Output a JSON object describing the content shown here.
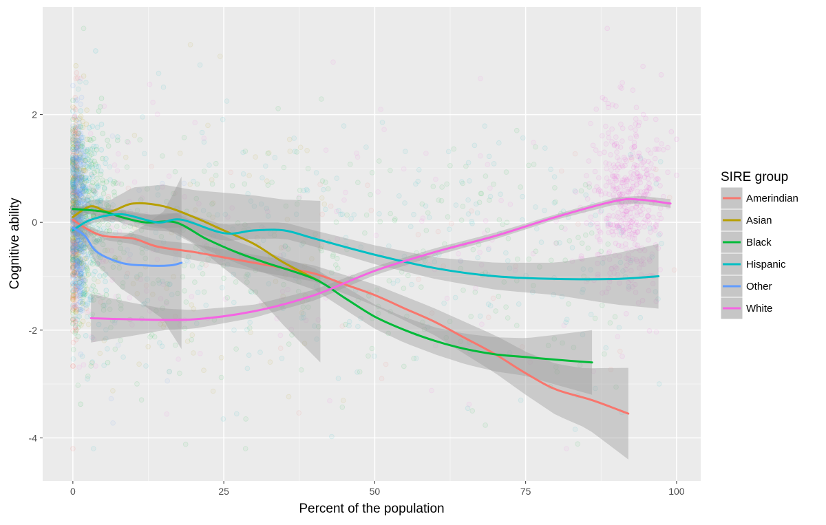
{
  "chart_data": {
    "type": "scatter",
    "title": "",
    "xlabel": "Percent of the population",
    "ylabel": "Cognitive ability",
    "xlim": [
      -5,
      104
    ],
    "ylim": [
      -4.8,
      4.0
    ],
    "x_ticks": [
      0,
      25,
      50,
      75,
      100
    ],
    "y_ticks": [
      -4,
      -2,
      0,
      2
    ],
    "x_tick_labels": [
      "0",
      "25",
      "50",
      "75",
      "100"
    ],
    "y_tick_labels": [
      "-4",
      "-2",
      "0",
      "2"
    ],
    "grid": true,
    "legend": {
      "title": "SIRE group",
      "position": "right"
    },
    "series": [
      {
        "name": "Amerindian",
        "color": "#F8766D",
        "x_range": [
          0,
          92
        ],
        "smooth": [
          [
            0,
            0.05
          ],
          [
            2,
            -0.1
          ],
          [
            5,
            -0.25
          ],
          [
            10,
            -0.3
          ],
          [
            14,
            -0.45
          ],
          [
            20,
            -0.55
          ],
          [
            25,
            -0.65
          ],
          [
            30,
            -0.75
          ],
          [
            35,
            -0.85
          ],
          [
            40,
            -0.95
          ],
          [
            45,
            -1.15
          ],
          [
            50,
            -1.35
          ],
          [
            55,
            -1.6
          ],
          [
            60,
            -1.85
          ],
          [
            65,
            -2.15
          ],
          [
            70,
            -2.45
          ],
          [
            75,
            -2.8
          ],
          [
            80,
            -3.1
          ],
          [
            86,
            -3.3
          ],
          [
            92,
            -3.55
          ]
        ],
        "ci_halfwidth": [
          [
            0,
            0.05
          ],
          [
            20,
            0.15
          ],
          [
            40,
            0.15
          ],
          [
            60,
            0.25
          ],
          [
            75,
            0.4
          ],
          [
            85,
            0.55
          ],
          [
            92,
            0.85
          ]
        ]
      },
      {
        "name": "Asian",
        "color": "#B79F00",
        "x_range": [
          0,
          41
        ],
        "smooth": [
          [
            0,
            0.1
          ],
          [
            3,
            0.3
          ],
          [
            6,
            0.2
          ],
          [
            10,
            0.35
          ],
          [
            15,
            0.3
          ],
          [
            20,
            0.1
          ],
          [
            25,
            -0.15
          ],
          [
            30,
            -0.4
          ],
          [
            35,
            -0.75
          ],
          [
            41,
            -1.1
          ]
        ],
        "ci_halfwidth": [
          [
            0,
            0.05
          ],
          [
            10,
            0.3
          ],
          [
            20,
            0.5
          ],
          [
            30,
            0.9
          ],
          [
            41,
            1.5
          ]
        ]
      },
      {
        "name": "Black",
        "color": "#00BA38",
        "x_range": [
          0,
          86
        ],
        "smooth": [
          [
            0,
            0.25
          ],
          [
            5,
            0.2
          ],
          [
            8,
            0.1
          ],
          [
            12,
            0
          ],
          [
            17,
            0
          ],
          [
            22,
            -0.3
          ],
          [
            27,
            -0.55
          ],
          [
            32,
            -0.75
          ],
          [
            40,
            -1.05
          ],
          [
            45,
            -1.4
          ],
          [
            50,
            -1.75
          ],
          [
            55,
            -2.0
          ],
          [
            60,
            -2.2
          ],
          [
            65,
            -2.35
          ],
          [
            70,
            -2.45
          ],
          [
            75,
            -2.5
          ],
          [
            80,
            -2.55
          ],
          [
            86,
            -2.6
          ]
        ],
        "ci_halfwidth": [
          [
            0,
            0.05
          ],
          [
            20,
            0.2
          ],
          [
            40,
            0.2
          ],
          [
            60,
            0.25
          ],
          [
            75,
            0.35
          ],
          [
            86,
            0.6
          ]
        ]
      },
      {
        "name": "Hispanic",
        "color": "#00BFC4",
        "x_range": [
          0,
          97
        ],
        "smooth": [
          [
            0,
            -0.15
          ],
          [
            3,
            0.05
          ],
          [
            8,
            0.15
          ],
          [
            14,
            0
          ],
          [
            18,
            0.05
          ],
          [
            25,
            -0.2
          ],
          [
            30,
            -0.15
          ],
          [
            35,
            -0.15
          ],
          [
            40,
            -0.3
          ],
          [
            50,
            -0.6
          ],
          [
            60,
            -0.85
          ],
          [
            70,
            -1.0
          ],
          [
            80,
            -1.05
          ],
          [
            90,
            -1.05
          ],
          [
            97,
            -1.0
          ]
        ],
        "ci_halfwidth": [
          [
            0,
            0.05
          ],
          [
            20,
            0.15
          ],
          [
            40,
            0.15
          ],
          [
            60,
            0.2
          ],
          [
            80,
            0.3
          ],
          [
            97,
            0.6
          ]
        ]
      },
      {
        "name": "Other",
        "color": "#619CFF",
        "x_range": [
          0,
          18
        ],
        "smooth": [
          [
            0,
            -0.1
          ],
          [
            2,
            -0.25
          ],
          [
            4,
            -0.55
          ],
          [
            8,
            -0.75
          ],
          [
            12,
            -0.8
          ],
          [
            16,
            -0.8
          ],
          [
            18,
            -0.75
          ]
        ],
        "ci_halfwidth": [
          [
            0,
            0.05
          ],
          [
            5,
            0.3
          ],
          [
            10,
            0.6
          ],
          [
            15,
            1.0
          ],
          [
            18,
            1.6
          ]
        ]
      },
      {
        "name": "White",
        "color": "#F564E3",
        "x_range": [
          3,
          99
        ],
        "smooth": [
          [
            3,
            -1.78
          ],
          [
            10,
            -1.8
          ],
          [
            20,
            -1.8
          ],
          [
            30,
            -1.65
          ],
          [
            40,
            -1.35
          ],
          [
            50,
            -0.9
          ],
          [
            60,
            -0.55
          ],
          [
            70,
            -0.25
          ],
          [
            80,
            0.1
          ],
          [
            90,
            0.4
          ],
          [
            94,
            0.42
          ],
          [
            99,
            0.35
          ]
        ],
        "ci_halfwidth": [
          [
            3,
            0.45
          ],
          [
            15,
            0.2
          ],
          [
            30,
            0.12
          ],
          [
            50,
            0.08
          ],
          [
            80,
            0.05
          ],
          [
            99,
            0.08
          ]
        ]
      }
    ],
    "scatter_clouds": [
      {
        "series": "Amerindian",
        "count": 320,
        "x_center": 0.3,
        "x_spread": 0.6,
        "y_mean": 0.0,
        "y_sd": 1.15,
        "tail_count": 50,
        "tail_x_max": 100
      },
      {
        "series": "Asian",
        "count": 200,
        "x_center": 0.8,
        "x_spread": 1.2,
        "y_mean": 0.2,
        "y_sd": 0.9,
        "tail_count": 90,
        "tail_x_max": 45
      },
      {
        "series": "Black",
        "count": 200,
        "x_center": 2.5,
        "x_spread": 4,
        "y_mean": 0.1,
        "y_sd": 0.9,
        "tail_count": 330,
        "tail_x_max": 90
      },
      {
        "series": "Hispanic",
        "count": 240,
        "x_center": 2.0,
        "x_spread": 3.5,
        "y_mean": 0.3,
        "y_sd": 0.9,
        "tail_count": 300,
        "tail_x_max": 98
      },
      {
        "series": "Other",
        "count": 420,
        "x_center": 1.0,
        "x_spread": 1.0,
        "y_mean": 0.1,
        "y_sd": 0.85,
        "tail_count": 20,
        "tail_x_max": 20
      },
      {
        "series": "White",
        "count": 420,
        "x_center": 92,
        "x_spread": 5,
        "y_mean": 0.4,
        "y_sd": 0.9,
        "tail_count": 170,
        "tail_x_max": 100
      }
    ]
  }
}
